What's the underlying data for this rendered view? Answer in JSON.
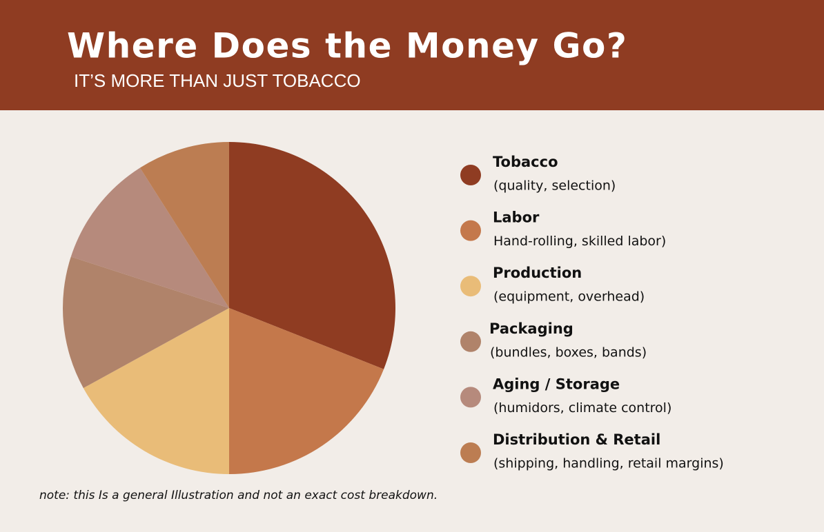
{
  "chart_data": {
    "type": "pie",
    "title": "Where Does the Money Go?",
    "subtitle": "IT’S MORE THAN JUST TOBACCO",
    "categories": [
      "Tobacco",
      "Labor",
      "Production",
      "Packaging",
      "Aging / Storage",
      "Distribution & Retail"
    ],
    "descriptions": [
      "(quality, selection)",
      "Hand-rolling, skilled labor)",
      "(equipment, overhead)",
      "(bundles, boxes, bands)",
      "(humidors, climate control)",
      "(shipping, handling, retail margins)"
    ],
    "values": [
      31,
      19,
      17,
      13,
      11,
      9
    ],
    "colors": [
      "#8f3c22",
      "#c4784b",
      "#e9bc78",
      "#b0836a",
      "#b68a7c",
      "#bc7d52"
    ],
    "note": "note: this Is a general Illustration and not an exact cost breakdown."
  }
}
